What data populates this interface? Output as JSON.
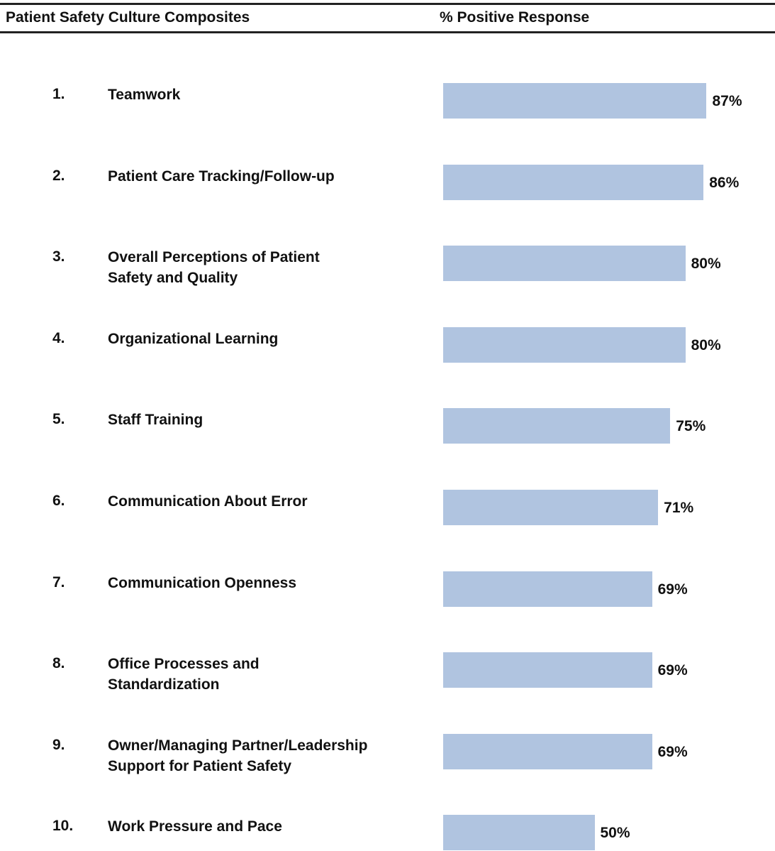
{
  "chart_data": {
    "type": "bar",
    "orientation": "horizontal",
    "column_headers": [
      "Patient Safety Culture Composites",
      "% Positive Response"
    ],
    "item_numbers": [
      "1.",
      "2.",
      "3.",
      "4.",
      "5.",
      "6.",
      "7.",
      "8.",
      "9.",
      "10."
    ],
    "categories": [
      "Teamwork",
      "Patient Care Tracking/Follow-up",
      "Overall Perceptions of Patient\nSafety and Quality",
      "Organizational Learning",
      "Staff Training",
      "Communication About Error",
      "Communication Openness",
      "Office Processes and\nStandardization",
      "Owner/Managing Partner/Leadership\nSupport for Patient Safety",
      "Work Pressure and Pace"
    ],
    "values": [
      87,
      86,
      80,
      80,
      75,
      71,
      69,
      69,
      69,
      50
    ],
    "value_labels": [
      "87%",
      "86%",
      "80%",
      "80%",
      "75%",
      "71%",
      "69%",
      "69%",
      "69%",
      "50%"
    ],
    "color": "#b0c4e0",
    "xlim": [
      0,
      100
    ]
  }
}
